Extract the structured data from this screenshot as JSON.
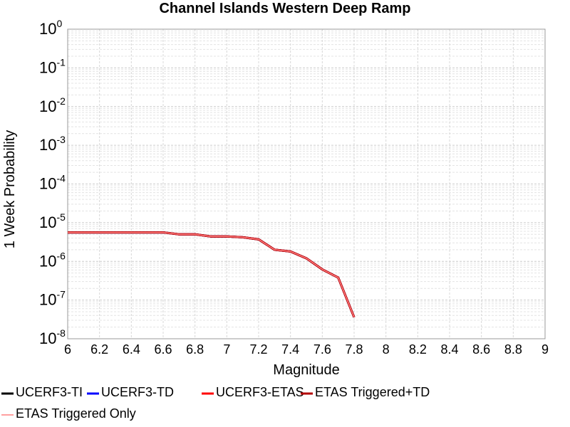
{
  "chart_data": {
    "type": "line",
    "title": "Channel Islands Western Deep Ramp",
    "xlabel": "Magnitude",
    "ylabel": "1 Week Probability",
    "x": [
      6.0,
      6.1,
      6.2,
      6.3,
      6.4,
      6.5,
      6.6,
      6.7,
      6.8,
      6.9,
      7.0,
      7.1,
      7.2,
      7.3,
      7.4,
      7.5,
      7.6,
      7.7,
      7.8
    ],
    "series": [
      {
        "name": "UCERF3-TI",
        "color": "#000000",
        "values": [
          5.6e-06,
          5.6e-06,
          5.6e-06,
          5.6e-06,
          5.6e-06,
          5.6e-06,
          5.6e-06,
          5e-06,
          5e-06,
          4.4e-06,
          4.4e-06,
          4.2e-06,
          3.7e-06,
          2e-06,
          1.8e-06,
          1.2e-06,
          6.2e-07,
          3.8e-07,
          3.6e-08
        ]
      },
      {
        "name": "UCERF3-TD",
        "color": "#0000ff",
        "values": [
          5.6e-06,
          5.6e-06,
          5.6e-06,
          5.6e-06,
          5.6e-06,
          5.6e-06,
          5.6e-06,
          5e-06,
          5e-06,
          4.4e-06,
          4.4e-06,
          4.2e-06,
          3.7e-06,
          2e-06,
          1.8e-06,
          1.2e-06,
          6.2e-07,
          3.8e-07,
          3.6e-08
        ]
      },
      {
        "name": "UCERF3-ETAS",
        "color": "#ff0000",
        "values": [
          5.6e-06,
          5.6e-06,
          5.6e-06,
          5.6e-06,
          5.6e-06,
          5.6e-06,
          5.6e-06,
          5e-06,
          5e-06,
          4.4e-06,
          4.4e-06,
          4.2e-06,
          3.7e-06,
          2e-06,
          1.8e-06,
          1.2e-06,
          6.2e-07,
          3.8e-07,
          3.6e-08
        ]
      },
      {
        "name": "ETAS Triggered+TD",
        "color": "#b40000",
        "values": [
          5.6e-06,
          5.6e-06,
          5.6e-06,
          5.6e-06,
          5.6e-06,
          5.6e-06,
          5.6e-06,
          5e-06,
          5e-06,
          4.4e-06,
          4.4e-06,
          4.2e-06,
          3.7e-06,
          2e-06,
          1.8e-06,
          1.2e-06,
          6.2e-07,
          3.8e-07,
          3.6e-08
        ]
      },
      {
        "name": "ETAS Triggered Only",
        "color": "#ff8080",
        "values": [
          5.6e-06,
          5.6e-06,
          5.6e-06,
          5.6e-06,
          5.6e-06,
          5.6e-06,
          5.6e-06,
          5e-06,
          5e-06,
          4.4e-06,
          4.4e-06,
          4.2e-06,
          3.7e-06,
          2e-06,
          1.8e-06,
          1.2e-06,
          6.2e-07,
          3.8e-07,
          3.6e-08
        ]
      }
    ],
    "xlim": [
      6,
      9
    ],
    "xticks": [
      6,
      6.2,
      6.4,
      6.6,
      6.8,
      7,
      7.2,
      7.4,
      7.6,
      7.8,
      8,
      8.2,
      8.4,
      8.6,
      8.8,
      9
    ],
    "ylim": [
      1e-08,
      1
    ],
    "yticks": [
      {
        "value": 1e-08,
        "label": "10",
        "exponent": "-8"
      },
      {
        "value": 1e-07,
        "label": "10",
        "exponent": "-7"
      },
      {
        "value": 1e-06,
        "label": "10",
        "exponent": "-6"
      },
      {
        "value": 1e-05,
        "label": "10",
        "exponent": "-5"
      },
      {
        "value": 0.0001,
        "label": "10",
        "exponent": "-4"
      },
      {
        "value": 0.001,
        "label": "10",
        "exponent": "-3"
      },
      {
        "value": 0.01,
        "label": "10",
        "exponent": "-2"
      },
      {
        "value": 0.1,
        "label": "10",
        "exponent": "-1"
      },
      {
        "value": 1,
        "label": "10",
        "exponent": "0"
      }
    ],
    "log_y": true,
    "grid": true,
    "minor_grid": true,
    "legend": "bottom"
  }
}
